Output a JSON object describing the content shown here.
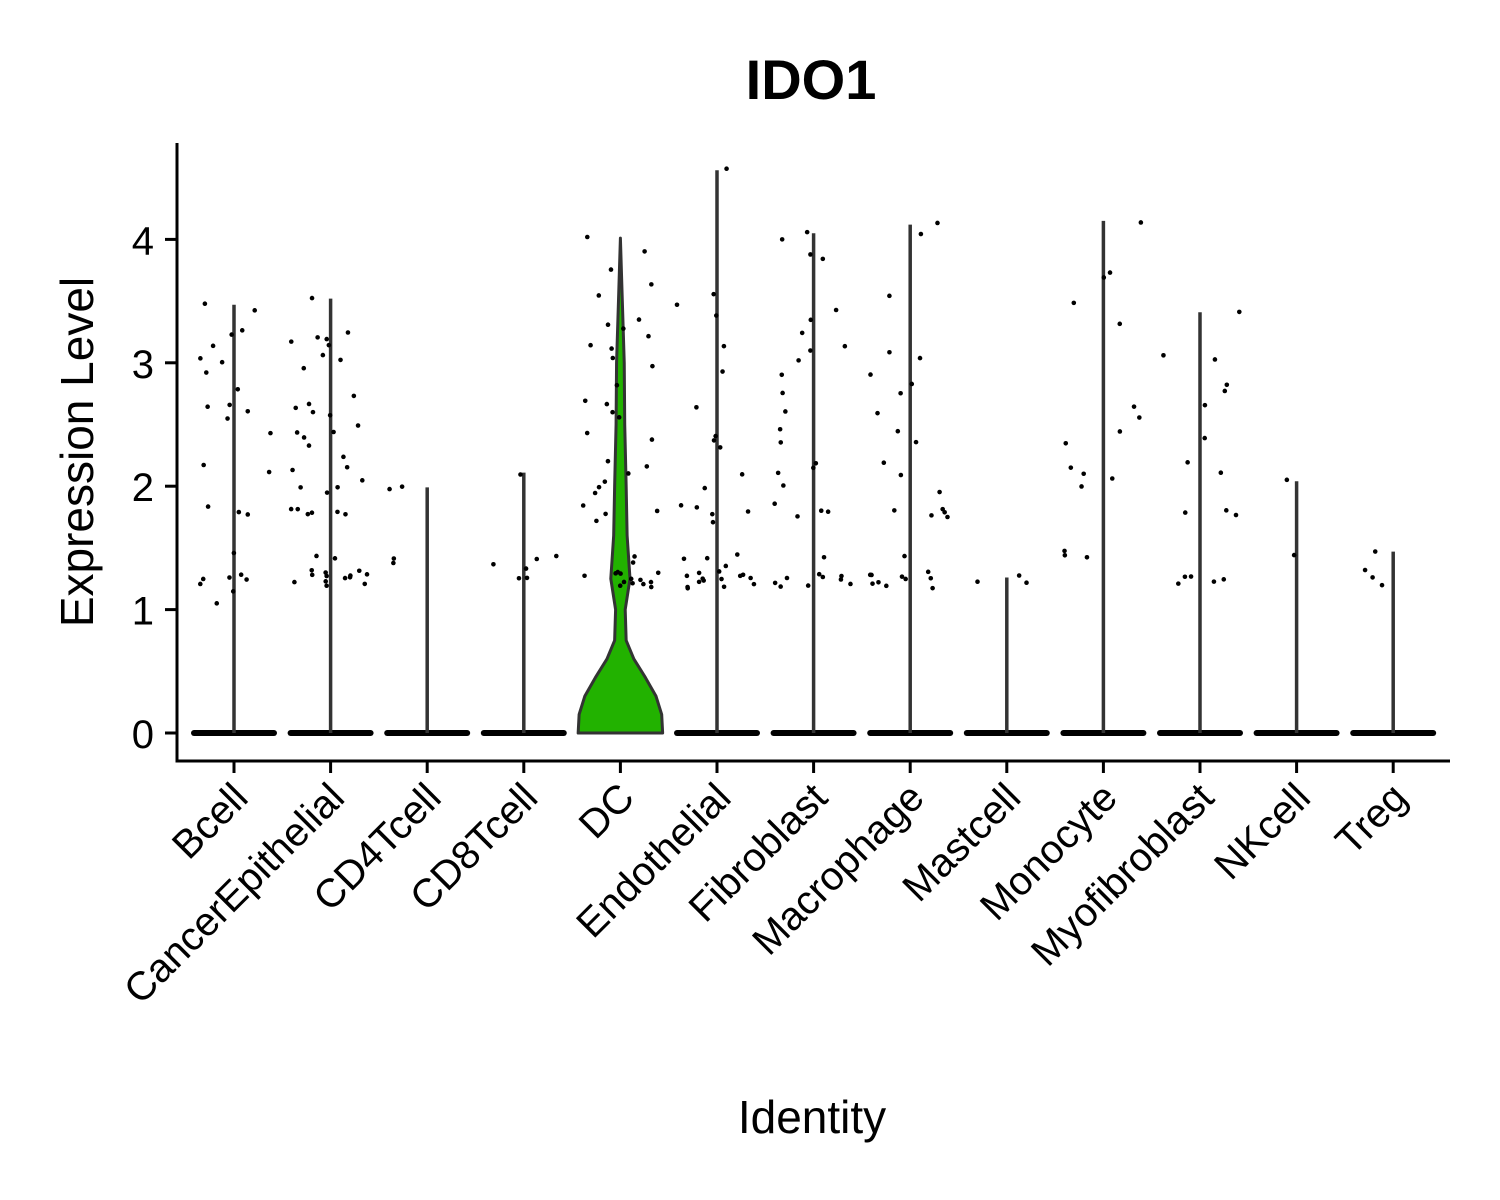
{
  "chart_data": {
    "type": "violin",
    "title": "IDO1",
    "xlabel": "Identity",
    "ylabel": "Expression Level",
    "ylim": [
      -0.22,
      4.8
    ],
    "yticks": [
      0,
      1,
      2,
      3,
      4
    ],
    "highlight_color": "#22B200",
    "grid": false,
    "legend": "none",
    "categories": [
      "Bcell",
      "CancerEpithelial",
      "CD4Tcell",
      "CD8Tcell",
      "DC",
      "Endothelial",
      "Fibroblast",
      "Macrophage",
      "Mastcell",
      "Monocyte",
      "Myofibroblast",
      "NKcell",
      "Treg"
    ],
    "max_values": [
      3.47,
      3.52,
      1.99,
      2.11,
      4.01,
      4.56,
      4.05,
      4.12,
      1.26,
      4.15,
      3.41,
      2.04,
      1.47
    ],
    "violin_highlight": {
      "category": "DC",
      "profile": [
        {
          "y": 0.0,
          "halfwidth": 0.44
        },
        {
          "y": 0.15,
          "halfwidth": 0.43
        },
        {
          "y": 0.3,
          "halfwidth": 0.37
        },
        {
          "y": 0.45,
          "halfwidth": 0.26
        },
        {
          "y": 0.6,
          "halfwidth": 0.14
        },
        {
          "y": 0.75,
          "halfwidth": 0.06
        },
        {
          "y": 1.0,
          "halfwidth": 0.05
        },
        {
          "y": 1.25,
          "halfwidth": 0.1
        },
        {
          "y": 1.6,
          "halfwidth": 0.07
        },
        {
          "y": 2.0,
          "halfwidth": 0.06
        },
        {
          "y": 2.5,
          "halfwidth": 0.045
        },
        {
          "y": 3.0,
          "halfwidth": 0.04
        },
        {
          "y": 3.5,
          "halfwidth": 0.02
        },
        {
          "y": 4.01,
          "halfwidth": 0.0
        }
      ]
    },
    "points": {
      "Bcell": [
        1.15,
        1.24,
        1.26,
        1.22,
        1.28,
        1.06,
        1.23,
        1.45,
        1.76,
        1.79,
        1.82,
        2.13,
        2.17,
        2.42,
        2.55,
        2.6,
        2.66,
        2.65,
        2.78,
        2.93,
        3.0,
        3.05,
        3.15,
        3.22,
        3.26,
        3.43,
        3.47
      ],
      "CancerEpithelial": [
        1.18,
        1.22,
        1.26,
        1.28,
        1.3,
        1.24,
        1.27,
        1.31,
        1.25,
        1.29,
        1.33,
        1.22,
        1.28,
        1.4,
        1.43,
        1.77,
        1.78,
        1.8,
        1.81,
        1.79,
        1.83,
        1.96,
        1.99,
        2.0,
        2.04,
        2.12,
        2.16,
        2.25,
        2.34,
        2.38,
        2.42,
        2.45,
        2.48,
        2.56,
        2.6,
        2.63,
        2.66,
        2.72,
        2.94,
        3.01,
        3.05,
        3.14,
        3.18,
        3.2,
        3.22,
        3.25,
        3.52
      ],
      "CD4Tcell": [
        1.39,
        1.4,
        1.99,
        1.98
      ],
      "CD8Tcell": [
        1.25,
        1.27,
        1.33,
        1.38,
        1.41,
        1.44,
        2.11
      ],
      "DC": [
        1.18,
        1.2,
        1.22,
        1.24,
        1.26,
        1.28,
        1.3,
        1.21,
        1.25,
        1.29,
        1.23,
        1.27,
        1.32,
        1.37,
        1.42,
        1.72,
        1.76,
        1.8,
        1.84,
        1.95,
        2.0,
        2.05,
        2.1,
        2.15,
        2.2,
        2.38,
        2.42,
        2.55,
        2.6,
        2.65,
        2.7,
        2.82,
        2.96,
        3.03,
        3.1,
        3.15,
        3.2,
        3.27,
        3.3,
        3.35,
        3.55,
        3.65,
        3.77,
        3.9,
        4.01
      ],
      "Endothelial": [
        1.18,
        1.2,
        1.22,
        1.24,
        1.26,
        1.28,
        1.3,
        1.19,
        1.21,
        1.23,
        1.25,
        1.27,
        1.29,
        1.31,
        1.35,
        1.4,
        1.43,
        1.46,
        1.72,
        1.76,
        1.79,
        1.82,
        1.84,
        2.0,
        2.1,
        2.3,
        2.36,
        2.4,
        2.64,
        2.92,
        3.14,
        3.37,
        3.47,
        3.54,
        4.56
      ],
      "Fibroblast": [
        1.18,
        1.2,
        1.22,
        1.24,
        1.26,
        1.28,
        1.3,
        1.21,
        1.25,
        1.42,
        1.77,
        1.79,
        1.8,
        1.85,
        2.0,
        2.1,
        2.15,
        2.2,
        2.35,
        2.45,
        2.6,
        2.75,
        2.9,
        3.03,
        3.1,
        3.14,
        3.25,
        3.34,
        3.42,
        3.84,
        3.89,
        4.0,
        4.05
      ],
      "Macrophage": [
        1.18,
        1.2,
        1.22,
        1.24,
        1.26,
        1.28,
        1.3,
        1.21,
        1.25,
        1.29,
        1.44,
        1.75,
        1.76,
        1.78,
        1.8,
        1.82,
        1.95,
        2.1,
        2.2,
        2.36,
        2.45,
        2.59,
        2.74,
        2.82,
        2.92,
        3.03,
        3.1,
        3.55,
        4.04,
        4.12
      ],
      "Mastcell": [
        1.21,
        1.23,
        1.26
      ],
      "Monocyte": [
        1.43,
        1.44,
        1.46,
        2.0,
        2.05,
        2.1,
        2.15,
        2.35,
        2.45,
        2.55,
        2.65,
        3.3,
        3.48,
        3.7,
        3.74,
        4.15
      ],
      "Myofibroblast": [
        1.2,
        1.22,
        1.24,
        1.26,
        1.28,
        1.75,
        1.78,
        1.82,
        2.1,
        2.2,
        2.4,
        2.65,
        2.78,
        2.83,
        3.03,
        3.07,
        3.4
      ],
      "NKcell": [
        1.44,
        2.04
      ],
      "Treg": [
        1.19,
        1.25,
        1.31,
        1.47
      ]
    }
  }
}
